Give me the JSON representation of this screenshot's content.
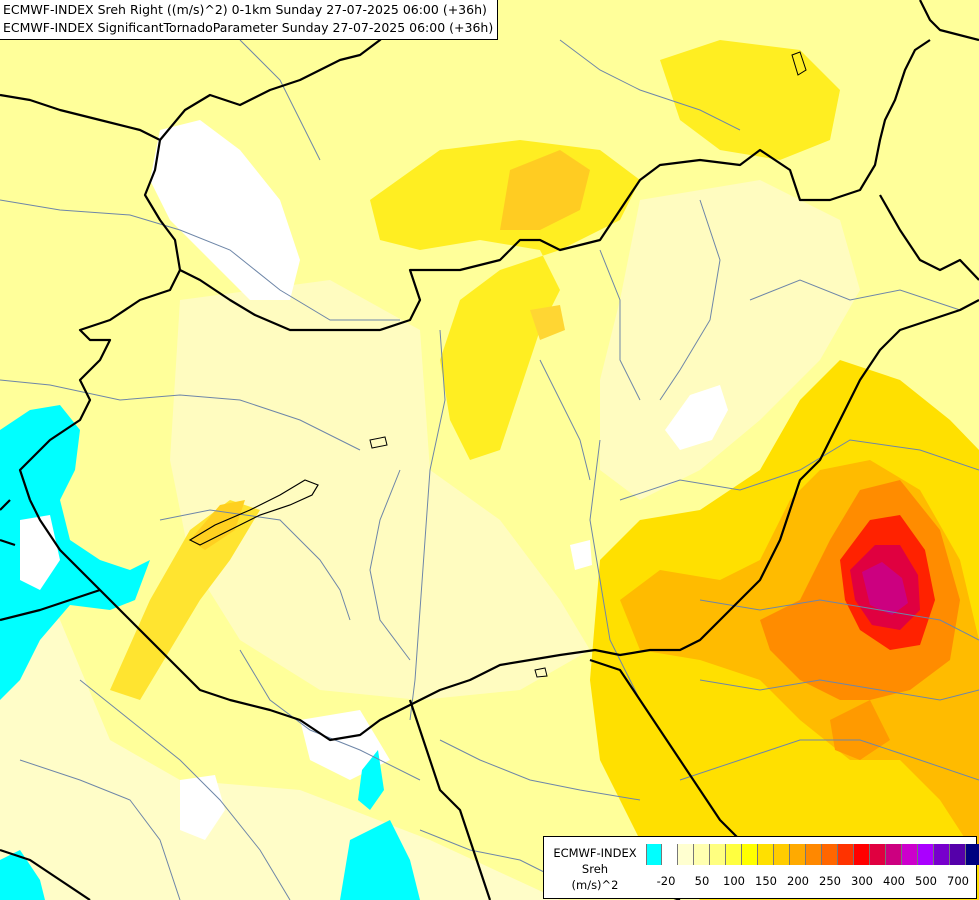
{
  "header": {
    "line1": "ECMWF-INDEX Sreh Right ((m/s)^2) 0-1km Sunday 27-07-2025 06:00 (+36h)",
    "line2": "ECMWF-INDEX SignificantTornadoParameter Sunday 27-07-2025 06:00 (+36h)"
  },
  "legend": {
    "title1": "ECMWF-INDEX",
    "title2": "Sreh",
    "title3": "(m/s)^2",
    "colors": [
      "#00ffff",
      "#ffffff",
      "#ffffd0",
      "#ffffb0",
      "#ffff80",
      "#ffff40",
      "#ffff00",
      "#ffe000",
      "#ffcc00",
      "#ffaa00",
      "#ff8800",
      "#ff6600",
      "#ff3300",
      "#ff0000",
      "#e00040",
      "#cc0080",
      "#cc00cc",
      "#aa00ff",
      "#7700cc",
      "#5500aa",
      "#000080"
    ],
    "ticks": [
      {
        "label": "-20",
        "index": 1
      },
      {
        "label": "50",
        "index": 3
      },
      {
        "label": "100",
        "index": 5
      },
      {
        "label": "150",
        "index": 7
      },
      {
        "label": "200",
        "index": 9
      },
      {
        "label": "250",
        "index": 11
      },
      {
        "label": "300",
        "index": 13
      },
      {
        "label": "400",
        "index": 15
      },
      {
        "label": "500",
        "index": 17
      },
      {
        "label": "700",
        "index": 19
      }
    ]
  }
}
